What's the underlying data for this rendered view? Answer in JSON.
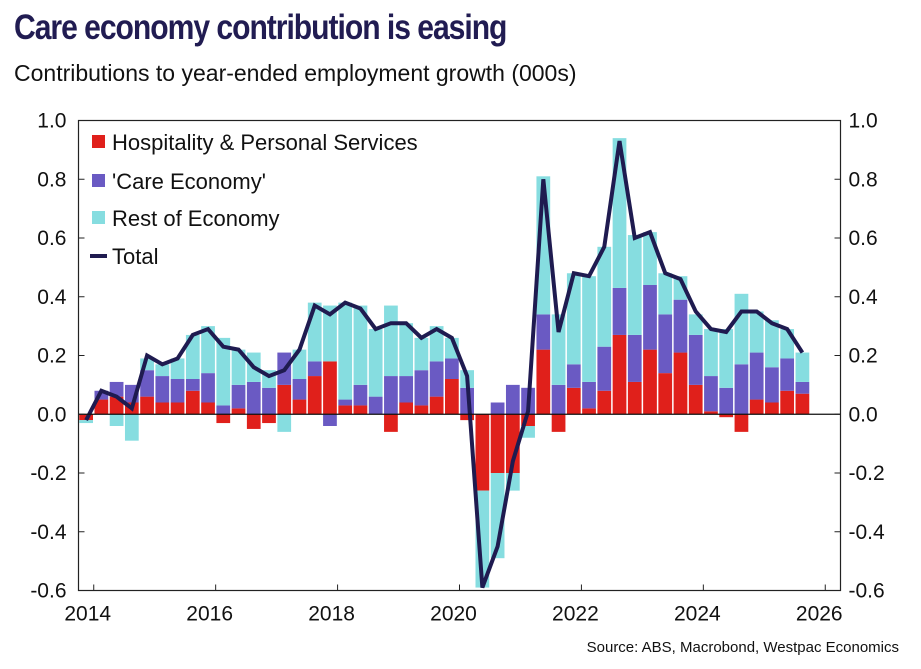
{
  "title": "Care economy contribution is easing",
  "subtitle": "Contributions to year-ended employment growth (000s)",
  "source": "Source: ABS, Macrobond, Westpac Economics",
  "chart_data": {
    "type": "bar",
    "stacked": true,
    "title": "Care economy contribution is easing",
    "subtitle": "Contributions to year-ended employment growth (000s)",
    "ylim": [
      -0.6,
      1.0
    ],
    "xlim": [
      2013.75,
      2026.25
    ],
    "y_ticks": [
      "1.0",
      "0.8",
      "0.6",
      "0.4",
      "0.2",
      "0.0",
      "-0.2",
      "-0.4",
      "-0.6"
    ],
    "y_tick_values": [
      1.0,
      0.8,
      0.6,
      0.4,
      0.2,
      0.0,
      -0.2,
      -0.4,
      -0.6
    ],
    "x_ticks": [
      "2014",
      "2016",
      "2018",
      "2020",
      "2022",
      "2024",
      "2026"
    ],
    "x_tick_values": [
      2014,
      2016,
      2018,
      2020,
      2022,
      2024,
      2026
    ],
    "legend_position": "top-left",
    "grid": false,
    "colors": {
      "hospitality": "#e0201b",
      "care": "#6a5ac3",
      "rest": "#86dde0",
      "total": "#1f1b50"
    },
    "quarters": [
      "2013-12",
      "2014-03",
      "2014-06",
      "2014-09",
      "2014-12",
      "2015-03",
      "2015-06",
      "2015-09",
      "2015-12",
      "2016-03",
      "2016-06",
      "2016-09",
      "2016-12",
      "2017-03",
      "2017-06",
      "2017-09",
      "2017-12",
      "2018-03",
      "2018-06",
      "2018-09",
      "2018-12",
      "2019-03",
      "2019-06",
      "2019-09",
      "2019-12",
      "2020-03",
      "2020-06",
      "2020-09",
      "2020-12",
      "2021-03",
      "2021-06",
      "2021-09",
      "2021-12",
      "2022-03",
      "2022-06",
      "2022-09",
      "2022-12",
      "2023-03",
      "2023-06",
      "2023-09",
      "2023-12",
      "2024-03",
      "2024-06",
      "2024-09",
      "2024-12",
      "2025-03",
      "2025-06",
      "2025-09"
    ],
    "series": [
      {
        "name": "Hospitality & Personal Services",
        "kind": "bar",
        "values": [
          -0.02,
          0.05,
          0.06,
          0.04,
          0.06,
          0.04,
          0.04,
          0.08,
          0.04,
          -0.03,
          0.02,
          -0.05,
          -0.03,
          0.1,
          0.05,
          0.13,
          0.18,
          0.03,
          0.03,
          0.0,
          -0.06,
          0.04,
          0.03,
          0.06,
          0.12,
          -0.02,
          -0.26,
          -0.2,
          -0.2,
          -0.04,
          0.22,
          -0.06,
          0.09,
          0.02,
          0.08,
          0.27,
          0.11,
          0.22,
          0.14,
          0.21,
          0.1,
          0.01,
          -0.01,
          -0.06,
          0.05,
          0.04,
          0.08,
          0.07
        ]
      },
      {
        "name": "'Care Economy'",
        "kind": "bar",
        "values": [
          0.0,
          0.03,
          0.05,
          0.06,
          0.09,
          0.09,
          0.08,
          0.04,
          0.1,
          0.03,
          0.08,
          0.11,
          0.09,
          0.11,
          0.07,
          0.05,
          -0.04,
          0.02,
          0.07,
          0.06,
          0.13,
          0.09,
          0.12,
          0.12,
          0.07,
          0.09,
          0.0,
          0.04,
          0.1,
          0.09,
          0.12,
          0.1,
          0.08,
          0.09,
          0.15,
          0.16,
          0.16,
          0.22,
          0.2,
          0.18,
          0.17,
          0.12,
          0.09,
          0.17,
          0.16,
          0.12,
          0.11,
          0.04
        ]
      },
      {
        "name": "Rest of Economy",
        "kind": "bar",
        "values": [
          -0.01,
          0.0,
          -0.04,
          -0.09,
          0.04,
          0.04,
          0.07,
          0.15,
          0.16,
          0.23,
          0.12,
          0.1,
          0.06,
          -0.06,
          0.1,
          0.2,
          0.19,
          0.33,
          0.27,
          0.23,
          0.24,
          0.18,
          0.11,
          0.12,
          0.07,
          0.06,
          -0.33,
          -0.29,
          -0.06,
          -0.04,
          0.47,
          0.24,
          0.31,
          0.36,
          0.34,
          0.51,
          0.34,
          0.18,
          0.14,
          0.08,
          0.07,
          0.16,
          0.2,
          0.24,
          0.14,
          0.16,
          0.1,
          0.1
        ]
      },
      {
        "name": "Total",
        "kind": "line",
        "values": [
          -0.02,
          0.08,
          0.06,
          0.02,
          0.2,
          0.17,
          0.19,
          0.27,
          0.29,
          0.23,
          0.22,
          0.16,
          0.13,
          0.15,
          0.22,
          0.37,
          0.34,
          0.38,
          0.36,
          0.29,
          0.31,
          0.31,
          0.26,
          0.29,
          0.26,
          0.13,
          -0.59,
          -0.45,
          -0.16,
          0.01,
          0.8,
          0.28,
          0.48,
          0.47,
          0.57,
          0.93,
          0.6,
          0.62,
          0.48,
          0.46,
          0.35,
          0.29,
          0.28,
          0.35,
          0.35,
          0.31,
          0.29,
          0.21
        ]
      }
    ]
  }
}
